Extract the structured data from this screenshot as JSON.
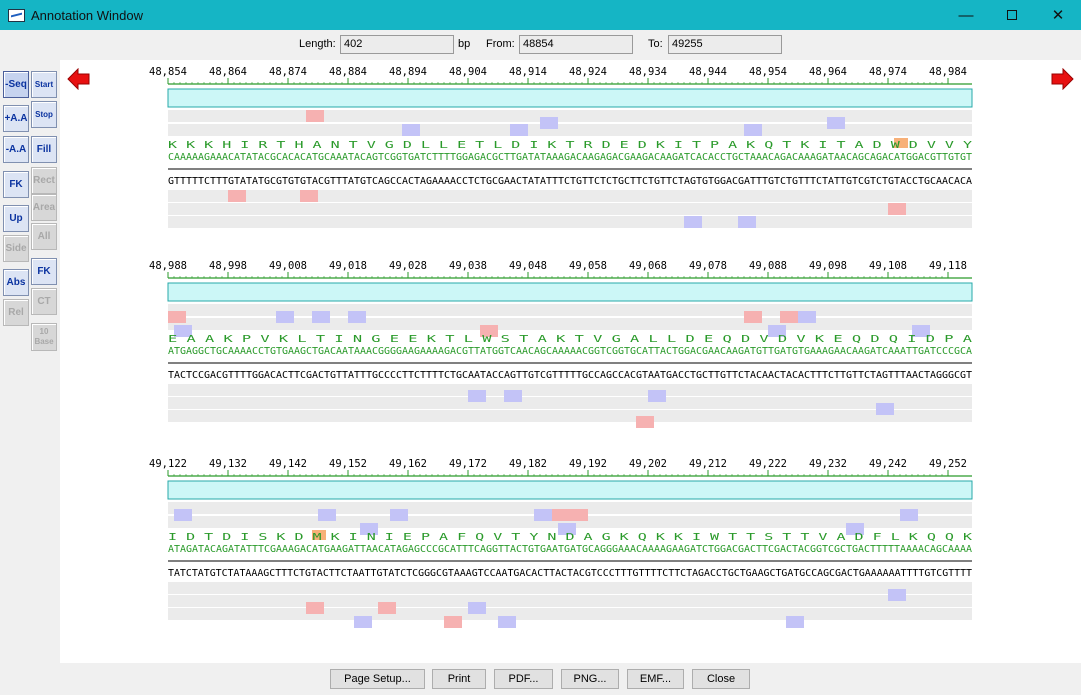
{
  "window": {
    "title": "Annotation Window"
  },
  "info": {
    "length_label": "Length:",
    "length_value": "402",
    "unit": "bp",
    "from_label": "From:",
    "from_value": "48854",
    "to_label": "To:",
    "to_value": "49255"
  },
  "toolbar": {
    "buttons": [
      {
        "label": "-Seq",
        "name": "seq-button",
        "enabled": true,
        "pressed": true
      },
      {
        "label": "Start",
        "name": "start-button",
        "enabled": true
      },
      {
        "label": "+A.A",
        "name": "add-aa-button",
        "enabled": true
      },
      {
        "label": "Stop",
        "name": "stop-button",
        "enabled": true
      },
      {
        "label": "-A.A",
        "name": "remove-aa-button",
        "enabled": true
      },
      {
        "label": "Fill",
        "name": "fill-button",
        "enabled": true
      },
      {
        "label": "FK",
        "name": "fk-dropdown-button",
        "enabled": true
      },
      {
        "label": "Rect",
        "name": "rect-button",
        "enabled": false
      },
      {
        "label": "Up",
        "name": "up-button",
        "enabled": true
      },
      {
        "label": "Area",
        "name": "area-button",
        "enabled": false
      },
      {
        "label": "Side",
        "name": "side-button",
        "enabled": false
      },
      {
        "label": "All",
        "name": "all-button",
        "enabled": false
      },
      {
        "label": "FK",
        "name": "fk-color-button",
        "enabled": true
      },
      {
        "label": "Abs",
        "name": "abs-button",
        "enabled": true
      },
      {
        "label": "CT",
        "name": "ct-button",
        "enabled": false
      },
      {
        "label": "Rel",
        "name": "rel-button",
        "enabled": false
      },
      {
        "label": "10 Base",
        "name": "base10-button",
        "enabled": false
      }
    ]
  },
  "nav": {
    "prev_icon": "left-red-arrow-icon",
    "next_icon": "right-red-arrow-icon"
  },
  "colors": {
    "ruler": "#2a9a2a",
    "band": "#ccf7f7",
    "band_border": "#27a9a9",
    "track": "#ebebeb",
    "pink": "#f6b1b1",
    "blue": "#c3c3f7",
    "orange": "#f7b078",
    "base": "#2a9a2a",
    "aa": "#2a9a2a"
  },
  "blocks": [
    {
      "ticks": [
        "48,854",
        "48,864",
        "48,874",
        "48,884",
        "48,894",
        "48,904",
        "48,914",
        "48,924",
        "48,934",
        "48,944",
        "48,954",
        "48,964",
        "48,974",
        "48,984"
      ],
      "aa": "K  K  K  H  I  R  T  H  A  N  T  V  G  D  L  L  E  T  L  D  I  K  T  R  D  E  D  K  I  T  P  A  K  Q  T  K  I  T  A  D  W  D  V  V  Y",
      "top": "CAAAAAGAAACATATACGCACACATGCAAATACAGTCGGTGATCTTTTGGAGACGCTTGATATAAAGACAAGAGACGAAGACAAGATCACACCTGCTAAACAGACAAAGATAACAGCAGACATGGACGTTGTGT",
      "bottom": "GTTTTTCTTTGTATATGCGTGTGTACGTTTATGTCAGCCACTAGAAAACCTCTGCGAACTATATTTCTGTTCTCTGCTTCTGTTCTAGTGTGGACGATTTGTCTGTTTCTATTGTCGTCTGTACCTGCAACACA"
    },
    {
      "ticks": [
        "48,988",
        "48,998",
        "49,008",
        "49,018",
        "49,028",
        "49,038",
        "49,048",
        "49,058",
        "49,068",
        "49,078",
        "49,088",
        "49,098",
        "49,108",
        "49,118"
      ],
      "aa": " E  A  A  K  P  V  K  L  T  I  N  G  E  E  K  T  L  W  S  T  A  K  T  V  G  A  L  L  D  E  Q  D  V  D  V  K  E  Q  D  Q  I  D  P  A",
      "top": "ATGAGGCTGCAAAACCTGTGAAGCTGACAATAAACGGGGAAGAAAAGACGTTATGGTCAACAGCAAAAACGGTCGGTGCATTACTGGACGAACAAGATGTTGATGTGAAAGAACAAGATCAAATTGATCCCGCA",
      "bottom": "TACTCCGACGTTTTGGACACTTCGACTGTTATTTGCCCCTTCTTTTCTGCAATACCAGTTGTCGTTTTTGCCAGCCACGTAATGACCTGCTTGTTCTACAACTACACTTTCTTGTTCTAGTTTAACTAGGGCGT"
    },
    {
      "ticks": [
        "49,122",
        "49,132",
        "49,142",
        "49,152",
        "49,162",
        "49,172",
        "49,182",
        "49,192",
        "49,202",
        "49,212",
        "49,222",
        "49,232",
        "49,242",
        "49,252"
      ],
      "aa": "I  D  T  D  I  S  K  D  M  K  I  N  I  E  P  A  F  Q  V  T  Y  N  D  A  G  K  Q  K  K  I  W  T  T  S  T  T  V  A  D  F  L  K  Q  Q  K",
      "top": "ATAGATACAGATATTTCGAAAGACATGAAGATTAACATAGAGCCCGCATTTCAGGTTACTGTGAATGATGCAGGGAAACAAAAGAAGATCTGGACGACTTCGACTACGGTCGCTGACTTTTTAAAACAGCAAAA",
      "bottom": "TATCTATGTCTATAAAGCTTTCTGTACTTCTAATTGTATCTCGGGCGTAAAGTCCAATGACACTTACTACGTCCCTTTGTTTTCTTCTAGACCTGCTGAAGCTGATGCCAGCGACTGAAAAAATTTTGTCGTTTT"
    }
  ],
  "bottom_buttons": [
    "Page Setup...",
    "Print",
    "PDF...",
    "PNG...",
    "EMF...",
    "Close"
  ]
}
